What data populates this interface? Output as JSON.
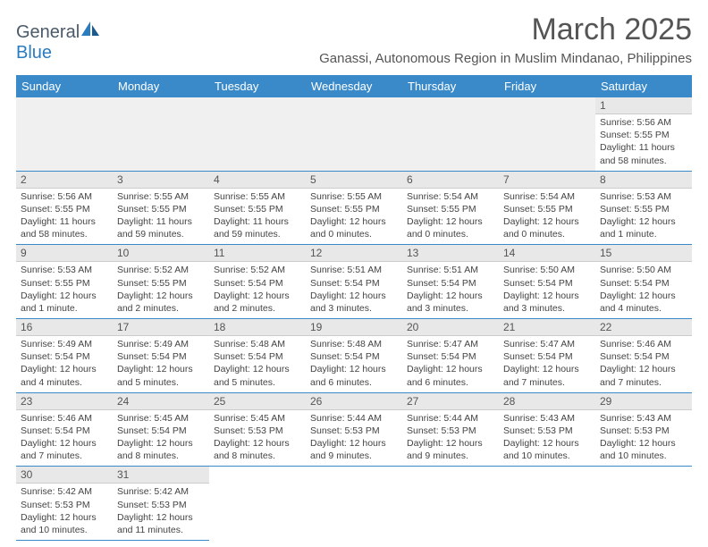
{
  "brand": {
    "part1": "General",
    "part2": "Blue"
  },
  "title": "March 2025",
  "location": "Ganassi, Autonomous Region in Muslim Mindanao, Philippines",
  "colors": {
    "header_bg": "#3a8ac9",
    "header_text": "#ffffff",
    "daynum_bg": "#e8e8e8",
    "border": "#3a8ac9",
    "text": "#444444",
    "title": "#555555"
  },
  "day_labels": [
    "Sunday",
    "Monday",
    "Tuesday",
    "Wednesday",
    "Thursday",
    "Friday",
    "Saturday"
  ],
  "weeks": [
    [
      null,
      null,
      null,
      null,
      null,
      null,
      {
        "n": "1",
        "sr": "Sunrise: 5:56 AM",
        "ss": "Sunset: 5:55 PM",
        "dl": "Daylight: 11 hours and 58 minutes."
      }
    ],
    [
      {
        "n": "2",
        "sr": "Sunrise: 5:56 AM",
        "ss": "Sunset: 5:55 PM",
        "dl": "Daylight: 11 hours and 58 minutes."
      },
      {
        "n": "3",
        "sr": "Sunrise: 5:55 AM",
        "ss": "Sunset: 5:55 PM",
        "dl": "Daylight: 11 hours and 59 minutes."
      },
      {
        "n": "4",
        "sr": "Sunrise: 5:55 AM",
        "ss": "Sunset: 5:55 PM",
        "dl": "Daylight: 11 hours and 59 minutes."
      },
      {
        "n": "5",
        "sr": "Sunrise: 5:55 AM",
        "ss": "Sunset: 5:55 PM",
        "dl": "Daylight: 12 hours and 0 minutes."
      },
      {
        "n": "6",
        "sr": "Sunrise: 5:54 AM",
        "ss": "Sunset: 5:55 PM",
        "dl": "Daylight: 12 hours and 0 minutes."
      },
      {
        "n": "7",
        "sr": "Sunrise: 5:54 AM",
        "ss": "Sunset: 5:55 PM",
        "dl": "Daylight: 12 hours and 0 minutes."
      },
      {
        "n": "8",
        "sr": "Sunrise: 5:53 AM",
        "ss": "Sunset: 5:55 PM",
        "dl": "Daylight: 12 hours and 1 minute."
      }
    ],
    [
      {
        "n": "9",
        "sr": "Sunrise: 5:53 AM",
        "ss": "Sunset: 5:55 PM",
        "dl": "Daylight: 12 hours and 1 minute."
      },
      {
        "n": "10",
        "sr": "Sunrise: 5:52 AM",
        "ss": "Sunset: 5:55 PM",
        "dl": "Daylight: 12 hours and 2 minutes."
      },
      {
        "n": "11",
        "sr": "Sunrise: 5:52 AM",
        "ss": "Sunset: 5:54 PM",
        "dl": "Daylight: 12 hours and 2 minutes."
      },
      {
        "n": "12",
        "sr": "Sunrise: 5:51 AM",
        "ss": "Sunset: 5:54 PM",
        "dl": "Daylight: 12 hours and 3 minutes."
      },
      {
        "n": "13",
        "sr": "Sunrise: 5:51 AM",
        "ss": "Sunset: 5:54 PM",
        "dl": "Daylight: 12 hours and 3 minutes."
      },
      {
        "n": "14",
        "sr": "Sunrise: 5:50 AM",
        "ss": "Sunset: 5:54 PM",
        "dl": "Daylight: 12 hours and 3 minutes."
      },
      {
        "n": "15",
        "sr": "Sunrise: 5:50 AM",
        "ss": "Sunset: 5:54 PM",
        "dl": "Daylight: 12 hours and 4 minutes."
      }
    ],
    [
      {
        "n": "16",
        "sr": "Sunrise: 5:49 AM",
        "ss": "Sunset: 5:54 PM",
        "dl": "Daylight: 12 hours and 4 minutes."
      },
      {
        "n": "17",
        "sr": "Sunrise: 5:49 AM",
        "ss": "Sunset: 5:54 PM",
        "dl": "Daylight: 12 hours and 5 minutes."
      },
      {
        "n": "18",
        "sr": "Sunrise: 5:48 AM",
        "ss": "Sunset: 5:54 PM",
        "dl": "Daylight: 12 hours and 5 minutes."
      },
      {
        "n": "19",
        "sr": "Sunrise: 5:48 AM",
        "ss": "Sunset: 5:54 PM",
        "dl": "Daylight: 12 hours and 6 minutes."
      },
      {
        "n": "20",
        "sr": "Sunrise: 5:47 AM",
        "ss": "Sunset: 5:54 PM",
        "dl": "Daylight: 12 hours and 6 minutes."
      },
      {
        "n": "21",
        "sr": "Sunrise: 5:47 AM",
        "ss": "Sunset: 5:54 PM",
        "dl": "Daylight: 12 hours and 7 minutes."
      },
      {
        "n": "22",
        "sr": "Sunrise: 5:46 AM",
        "ss": "Sunset: 5:54 PM",
        "dl": "Daylight: 12 hours and 7 minutes."
      }
    ],
    [
      {
        "n": "23",
        "sr": "Sunrise: 5:46 AM",
        "ss": "Sunset: 5:54 PM",
        "dl": "Daylight: 12 hours and 7 minutes."
      },
      {
        "n": "24",
        "sr": "Sunrise: 5:45 AM",
        "ss": "Sunset: 5:54 PM",
        "dl": "Daylight: 12 hours and 8 minutes."
      },
      {
        "n": "25",
        "sr": "Sunrise: 5:45 AM",
        "ss": "Sunset: 5:53 PM",
        "dl": "Daylight: 12 hours and 8 minutes."
      },
      {
        "n": "26",
        "sr": "Sunrise: 5:44 AM",
        "ss": "Sunset: 5:53 PM",
        "dl": "Daylight: 12 hours and 9 minutes."
      },
      {
        "n": "27",
        "sr": "Sunrise: 5:44 AM",
        "ss": "Sunset: 5:53 PM",
        "dl": "Daylight: 12 hours and 9 minutes."
      },
      {
        "n": "28",
        "sr": "Sunrise: 5:43 AM",
        "ss": "Sunset: 5:53 PM",
        "dl": "Daylight: 12 hours and 10 minutes."
      },
      {
        "n": "29",
        "sr": "Sunrise: 5:43 AM",
        "ss": "Sunset: 5:53 PM",
        "dl": "Daylight: 12 hours and 10 minutes."
      }
    ],
    [
      {
        "n": "30",
        "sr": "Sunrise: 5:42 AM",
        "ss": "Sunset: 5:53 PM",
        "dl": "Daylight: 12 hours and 10 minutes."
      },
      {
        "n": "31",
        "sr": "Sunrise: 5:42 AM",
        "ss": "Sunset: 5:53 PM",
        "dl": "Daylight: 12 hours and 11 minutes."
      },
      null,
      null,
      null,
      null,
      null
    ]
  ]
}
